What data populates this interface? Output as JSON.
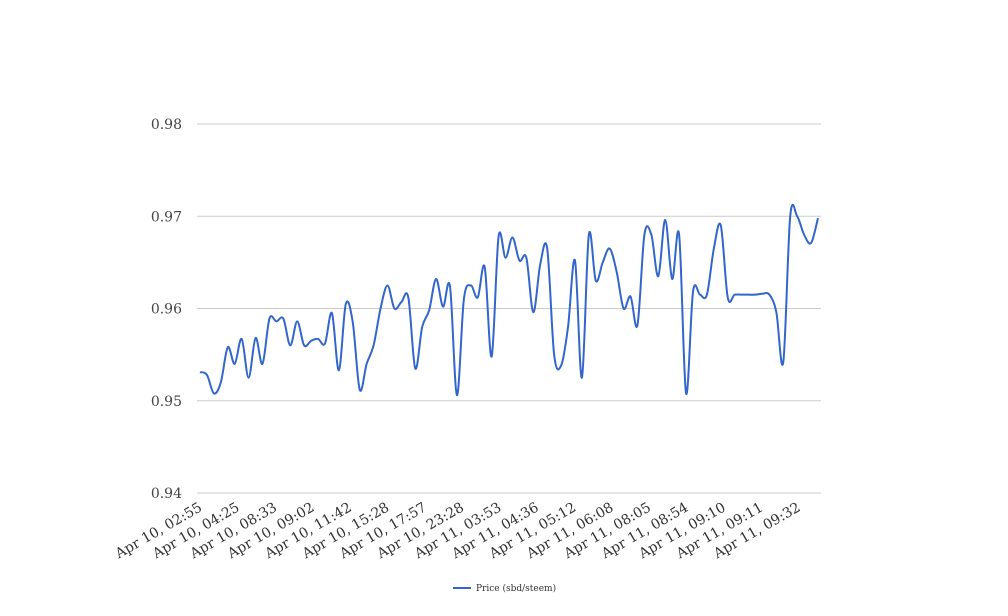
{
  "chart_data": {
    "type": "line",
    "title": "",
    "xlabel": "",
    "ylabel": "",
    "ylim": [
      0.94,
      0.98
    ],
    "yticks": [
      "0.94",
      "0.95",
      "0.96",
      "0.97",
      "0.98"
    ],
    "grid": "horizontal",
    "legend_position": "bottom-center",
    "x_tick_labels": [
      "Apr 10, 02:55",
      "Apr 10, 04:25",
      "Apr 10, 08:33",
      "Apr 10, 09:02",
      "Apr 10, 11:42",
      "Apr 10, 15:28",
      "Apr 10, 17:57",
      "Apr 10, 23:28",
      "Apr 11, 03:53",
      "Apr 11, 04:36",
      "Apr 11, 05:12",
      "Apr 11, 06:08",
      "Apr 11, 08:05",
      "Apr 11, 08:54",
      "Apr 11, 09:10",
      "Apr 11, 09:11",
      "Apr 11, 09:32"
    ],
    "series": [
      {
        "name": "Price (sbd/steem)",
        "color": "#3366cc",
        "values": [
          0.9531,
          0.9528,
          0.9508,
          0.952,
          0.9558,
          0.954,
          0.9567,
          0.9525,
          0.9568,
          0.954,
          0.9589,
          0.9586,
          0.9589,
          0.956,
          0.9586,
          0.956,
          0.9565,
          0.9567,
          0.9562,
          0.9595,
          0.9533,
          0.9605,
          0.9585,
          0.9512,
          0.954,
          0.956,
          0.96,
          0.9625,
          0.96,
          0.9607,
          0.9612,
          0.9535,
          0.958,
          0.9598,
          0.9632,
          0.9602,
          0.9624,
          0.9506,
          0.961,
          0.9625,
          0.9612,
          0.9645,
          0.9548,
          0.9678,
          0.9655,
          0.9677,
          0.9652,
          0.9655,
          0.9596,
          0.9648,
          0.9665,
          0.955,
          0.9538,
          0.958,
          0.9652,
          0.9525,
          0.968,
          0.963,
          0.965,
          0.9665,
          0.964,
          0.96,
          0.9613,
          0.9582,
          0.968,
          0.968,
          0.9635,
          0.9696,
          0.9632,
          0.968,
          0.9508,
          0.9618,
          0.9615,
          0.9615,
          0.9665,
          0.969,
          0.9612,
          0.9615,
          0.9615,
          0.9615,
          0.9615,
          0.9616,
          0.9615,
          0.9596,
          0.9542,
          0.97,
          0.97,
          0.968,
          0.9671,
          0.9698
        ]
      }
    ]
  }
}
